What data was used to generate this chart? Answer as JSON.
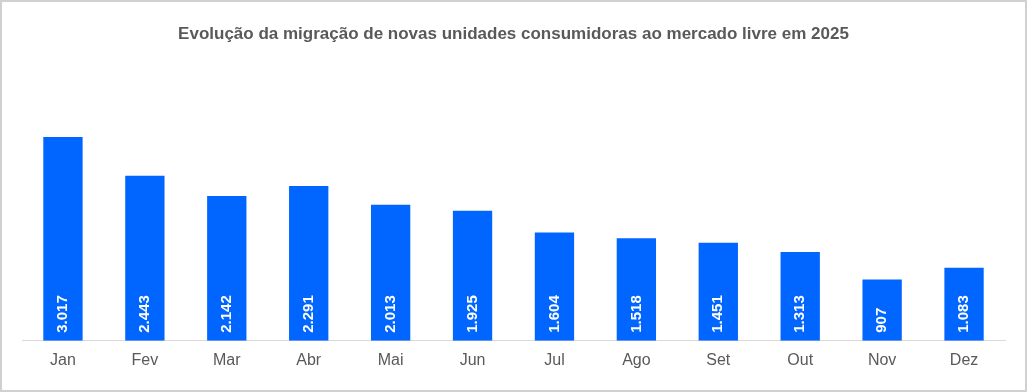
{
  "chart_data": {
    "type": "bar",
    "title": "Evolução da migração de novas unidades consumidoras ao mercado livre em 2025",
    "categories": [
      "Jan",
      "Fev",
      "Mar",
      "Abr",
      "Mai",
      "Jun",
      "Jul",
      "Ago",
      "Set",
      "Out",
      "Nov",
      "Dez"
    ],
    "values": [
      3017,
      2443,
      2142,
      2291,
      2013,
      1925,
      1604,
      1518,
      1451,
      1313,
      907,
      1083
    ],
    "value_labels": [
      "3.017",
      "2.443",
      "2.142",
      "2.291",
      "2.013",
      "1.925",
      "1.604",
      "1.518",
      "1.451",
      "1.313",
      "907",
      "1.083"
    ],
    "color": "#0066ff",
    "grid": false,
    "legend": false,
    "tick_labels": "x"
  }
}
